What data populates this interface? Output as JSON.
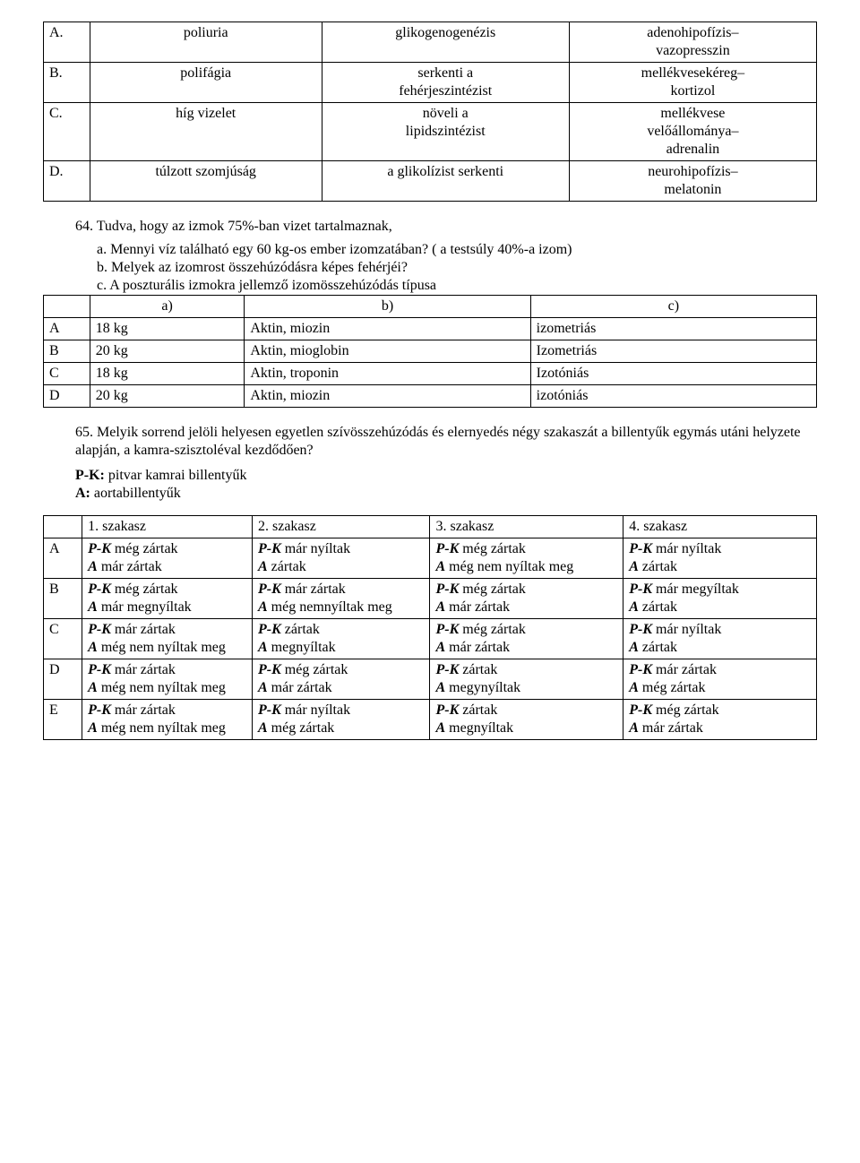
{
  "table1": {
    "rows": [
      {
        "label": "A.",
        "c1": "poliuria",
        "c2": "glikogenogenézis",
        "c3": "adenohipofízis–\nvazopresszin"
      },
      {
        "label": "B.",
        "c1": "polifágia",
        "c2": "serkenti a\nfehérjeszintézist",
        "c3": "mellékvesekéreg–\nkortizol"
      },
      {
        "label": "C.",
        "c1": "híg vizelet",
        "c2": "növeli a\nlipidszintézist",
        "c3": "mellékvese\nvelőállománya–\nadrenalin"
      },
      {
        "label": "D.",
        "c1": "túlzott szomjúság",
        "c2": "a glikolízist serkenti",
        "c3": "neurohipofízis–\nmelatonin"
      }
    ]
  },
  "q64": {
    "main": "64. Tudva, hogy az izmok 75%-ban vizet tartalmaznak,",
    "a": "a.    Mennyi víz található egy 60 kg-os ember izomzatában? ( a testsúly 40%-a izom)",
    "b": "b.   Melyek az izomrost összehúzódásra képes fehérjéi?",
    "c": "c.    A poszturális izmokra jellemző izomösszehúzódás típusa"
  },
  "table2": {
    "head": {
      "h0": "",
      "h1": "a)",
      "h2": "b)",
      "h3": "c)"
    },
    "rows": [
      {
        "label": "A",
        "c1": "18 kg",
        "c2": "Aktin, miozin",
        "c3": "izometriás"
      },
      {
        "label": "B",
        "c1": "20 kg",
        "c2": "Aktin, mioglobin",
        "c3": "Izometriás"
      },
      {
        "label": "C",
        "c1": "18 kg",
        "c2": "Aktin, troponin",
        "c3": "Izotóniás"
      },
      {
        "label": "D",
        "c1": "20 kg",
        "c2": "Aktin, miozin",
        "c3": "izotóniás"
      }
    ]
  },
  "q65": "65. Melyik sorrend jelöli helyesen egyetlen szívösszehúzódás és elernyedés négy szakaszát a billentyűk egymás utáni helyzete alapján, a kamra-szisztoléval kezdődően?",
  "pk": {
    "l1b": "P-K:",
    "l1": " pitvar kamrai billentyűk",
    "l2b": "A:",
    "l2": " aortabillentyűk"
  },
  "table3": {
    "head": {
      "h0": "",
      "h1": "1. szakasz",
      "h2": "2. szakasz",
      "h3": "3. szakasz",
      "h4": "4. szakasz"
    },
    "rows": [
      {
        "label": "A",
        "s1": [
          [
            "P-K",
            " még zártak"
          ],
          [
            "A",
            " már zártak"
          ]
        ],
        "s2": [
          [
            "P-K",
            " már nyíltak"
          ],
          [
            "A",
            " zártak"
          ]
        ],
        "s3": [
          [
            "P-K",
            " még zártak"
          ],
          [
            "A",
            " még nem nyíltak meg"
          ]
        ],
        "s4": [
          [
            "P-K",
            " már nyíltak"
          ],
          [
            "A",
            " zártak"
          ]
        ]
      },
      {
        "label": "B",
        "s1": [
          [
            "P-K",
            " még zártak"
          ],
          [
            "A",
            " már megnyíltak"
          ]
        ],
        "s2": [
          [
            "P-K",
            " már zártak"
          ],
          [
            "A",
            " még nemnyíltak meg"
          ]
        ],
        "s3": [
          [
            "P-K",
            " még zártak"
          ],
          [
            "A",
            " már zártak"
          ]
        ],
        "s4": [
          [
            "P-K",
            " már megyíltak"
          ],
          [
            "A",
            " zártak"
          ]
        ]
      },
      {
        "label": "C",
        "s1": [
          [
            "P-K",
            " már zártak"
          ],
          [
            "A",
            " még nem nyíltak meg"
          ]
        ],
        "s2": [
          [
            "P-K",
            " zártak"
          ],
          [
            "A",
            " megnyíltak"
          ]
        ],
        "s3": [
          [
            "P-K",
            " még zártak"
          ],
          [
            "A",
            " már zártak"
          ]
        ],
        "s4": [
          [
            "P-K",
            " már nyíltak"
          ],
          [
            "A",
            " zártak"
          ]
        ]
      },
      {
        "label": "D",
        "s1": [
          [
            "P-K",
            " már zártak"
          ],
          [
            "A",
            " még nem nyíltak meg"
          ]
        ],
        "s2": [
          [
            "P-K",
            " még zártak"
          ],
          [
            "A",
            " már zártak"
          ]
        ],
        "s3": [
          [
            "P-K",
            " zártak"
          ],
          [
            "A",
            " megynyíltak"
          ]
        ],
        "s4": [
          [
            "P-K",
            " már zártak"
          ],
          [
            "A",
            " még zártak"
          ]
        ]
      },
      {
        "label": "E",
        "s1": [
          [
            "P-K",
            " már zártak"
          ],
          [
            "A",
            " még nem nyíltak meg"
          ]
        ],
        "s2": [
          [
            "P-K",
            " már nyíltak"
          ],
          [
            "A",
            " még zártak"
          ]
        ],
        "s3": [
          [
            "P-K",
            " zártak"
          ],
          [
            "A",
            " megnyíltak"
          ]
        ],
        "s4": [
          [
            "P-K",
            " még zártak"
          ],
          [
            "A",
            " már zártak"
          ]
        ]
      }
    ]
  }
}
